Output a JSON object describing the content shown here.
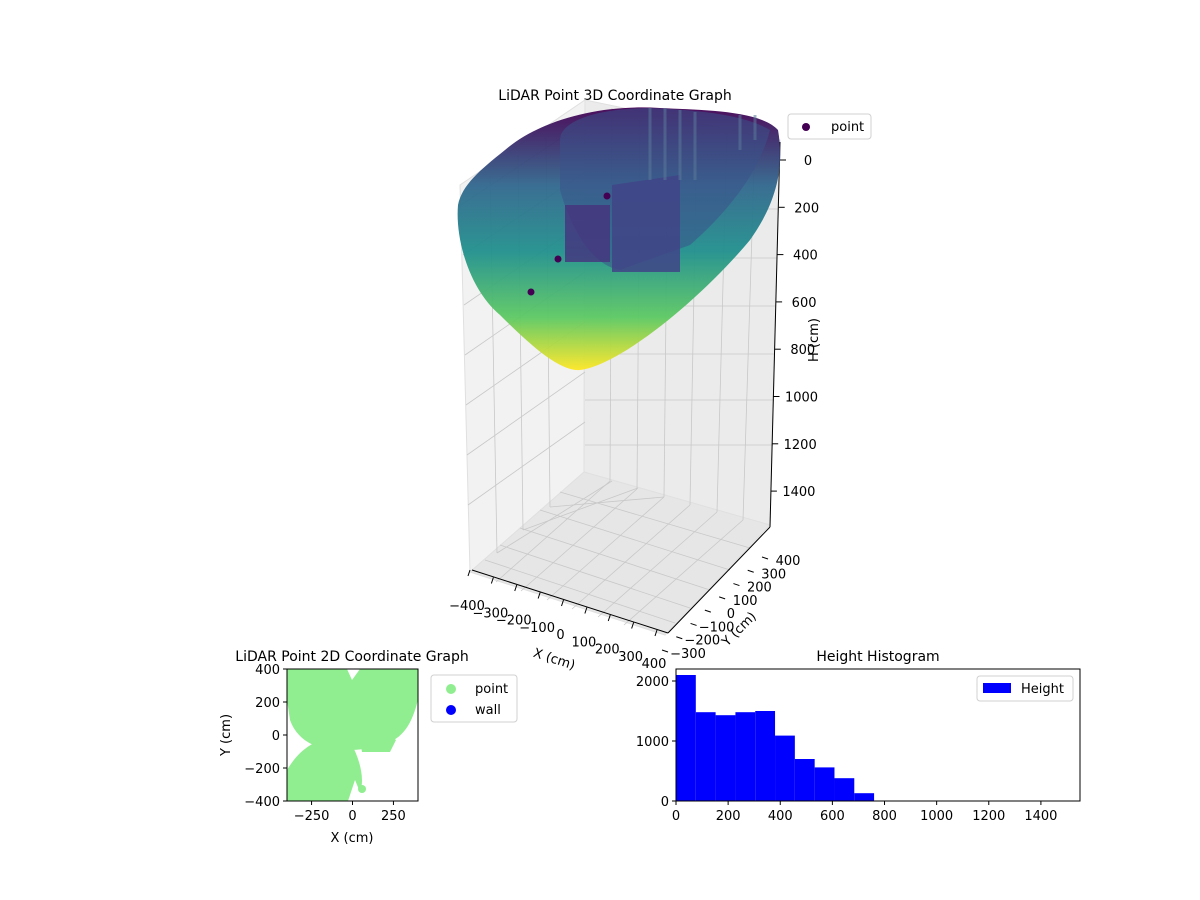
{
  "chart_data": [
    {
      "type": "scatter",
      "title": "LiDAR Point 3D Coordinate Graph",
      "xlabel": "X (cm)",
      "ylabel": "Y (cm)",
      "zlabel": "H (cm)",
      "x_ticks": [
        "−400",
        "−300",
        "−200",
        "−100",
        "0",
        "100",
        "200",
        "300",
        "400"
      ],
      "y_ticks": [
        "−300",
        "−200",
        "−100",
        "0",
        "100",
        "200",
        "300",
        "400"
      ],
      "z_ticks": [
        "0",
        "200",
        "400",
        "600",
        "800",
        "1000",
        "1200",
        "1400"
      ],
      "xlim": [
        -400,
        400
      ],
      "ylim": [
        -300,
        400
      ],
      "zlim": [
        0,
        1500
      ],
      "z_inverted": true,
      "grid": true,
      "colormap": "viridis",
      "series": [
        {
          "name": "point"
        }
      ],
      "legend": {
        "placement": "top-right",
        "entries": [
          {
            "label": "point",
            "color": "#440154"
          }
        ]
      }
    },
    {
      "type": "scatter",
      "title": "LiDAR Point 2D Coordinate Graph",
      "xlabel": "X (cm)",
      "ylabel": "Y (cm)",
      "x_ticks": [
        "−250",
        "0",
        "250"
      ],
      "y_ticks": [
        "400",
        "200",
        "0",
        "−200",
        "−400"
      ],
      "xlim": [
        -400,
        400
      ],
      "ylim": [
        -400,
        400
      ],
      "series": [
        {
          "name": "point",
          "color": "#90ee90"
        },
        {
          "name": "wall",
          "color": "#0000ff"
        }
      ],
      "legend": {
        "placement": "outside-right",
        "entries": [
          {
            "label": "point",
            "color": "#90ee90"
          },
          {
            "label": "wall",
            "color": "#0000ff"
          }
        ]
      }
    },
    {
      "type": "bar",
      "title": "Height Histogram",
      "xlabel": "",
      "ylabel": "",
      "x_ticks": [
        "0",
        "200",
        "400",
        "600",
        "800",
        "1000",
        "1200",
        "1400"
      ],
      "y_ticks": [
        "0",
        "1000",
        "2000"
      ],
      "xlim": [
        0,
        1550
      ],
      "ylim": [
        0,
        2200
      ],
      "bin_edges": [
        0,
        76,
        152,
        228,
        304,
        380,
        456,
        532,
        608,
        684,
        760
      ],
      "values": [
        2100,
        1480,
        1430,
        1480,
        1500,
        1090,
        700,
        560,
        380,
        130
      ],
      "series": [
        {
          "name": "Height",
          "color": "#0000ff"
        }
      ],
      "legend": {
        "placement": "top-right",
        "entries": [
          {
            "label": "Height",
            "color": "#0000ff"
          }
        ]
      }
    }
  ]
}
